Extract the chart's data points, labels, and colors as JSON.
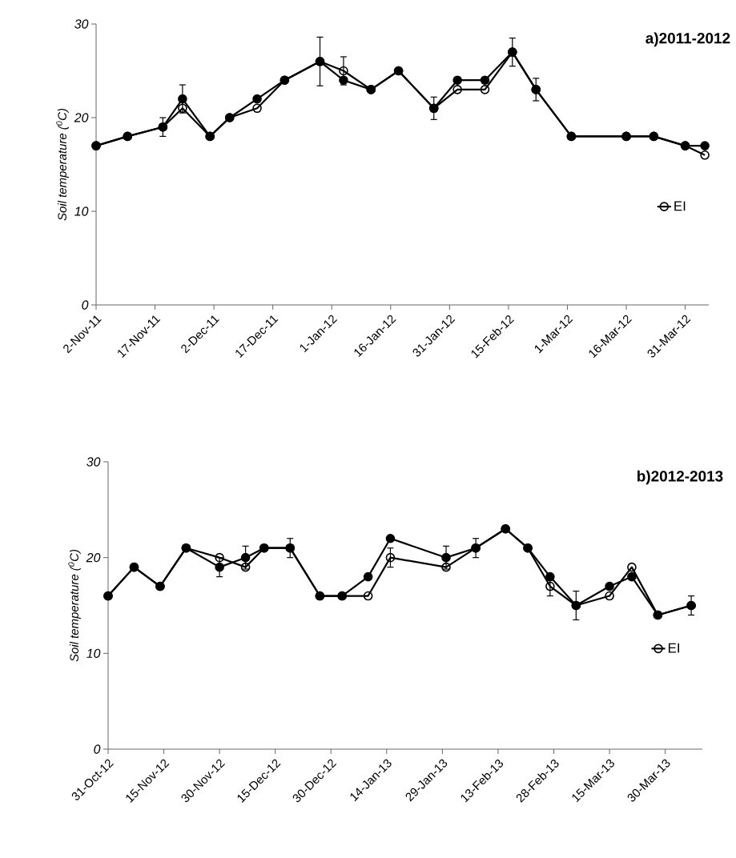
{
  "chart_data": [
    {
      "type": "line",
      "title": "a)2011-2012",
      "ylabel": "Soil temperature ($^{0}$C)",
      "x": [
        "2011-11-02",
        "2011-11-10",
        "2011-11-19",
        "2011-11-24",
        "2011-12-01",
        "2011-12-06",
        "2011-12-13",
        "2011-12-20",
        "2011-12-29",
        "2012-01-04",
        "2012-01-11",
        "2012-01-18",
        "2012-01-27",
        "2012-02-02",
        "2012-02-09",
        "2012-02-16",
        "2012-02-22",
        "2012-03-02",
        "2012-03-16",
        "2012-03-23",
        "2012-03-31",
        "2012-04-05"
      ],
      "xlim": [
        "2011-11-02",
        "2012-04-06"
      ],
      "xticks": [
        {
          "value": "2011-11-02",
          "label": "2-Nov-11"
        },
        {
          "value": "2011-11-17",
          "label": "17-Nov-11"
        },
        {
          "value": "2011-12-02",
          "label": "2-Dec-11"
        },
        {
          "value": "2011-12-17",
          "label": "17-Dec-11"
        },
        {
          "value": "2012-01-01",
          "label": "1-Jan-12"
        },
        {
          "value": "2012-01-16",
          "label": "16-Jan-12"
        },
        {
          "value": "2012-01-31",
          "label": "31-Jan-12"
        },
        {
          "value": "2012-02-15",
          "label": "15-Feb-12"
        },
        {
          "value": "2012-03-01",
          "label": "1-Mar-12"
        },
        {
          "value": "2012-03-16",
          "label": "16-Mar-12"
        },
        {
          "value": "2012-03-31",
          "label": "31-Mar-12"
        }
      ],
      "ylim": [
        0,
        30
      ],
      "yticks": [
        0,
        10,
        20,
        30
      ],
      "legend": "right",
      "marker": "circle",
      "series": [
        {
          "name": "EI",
          "color": "#000000",
          "values": [
            17,
            18,
            19,
            21,
            18,
            20,
            21,
            24,
            26,
            25,
            23,
            25,
            21,
            23,
            23,
            27,
            23,
            18,
            18,
            18,
            17,
            16
          ],
          "errors": [
            null,
            null,
            null,
            null,
            null,
            null,
            null,
            null,
            2.6,
            1.5,
            null,
            null,
            null,
            null,
            null,
            null,
            null,
            null,
            null,
            null,
            null,
            null
          ]
        },
        {
          "color": "#000000",
          "values": [
            17,
            18,
            19,
            22,
            18,
            20,
            22,
            24,
            26,
            24,
            23,
            25,
            21,
            24,
            24,
            27,
            23,
            18,
            18,
            18,
            17,
            17
          ],
          "errors": [
            null,
            null,
            1,
            1.5,
            null,
            null,
            null,
            null,
            null,
            null,
            null,
            null,
            1.2,
            null,
            null,
            1.5,
            1.2,
            null,
            null,
            null,
            null,
            null
          ]
        }
      ]
    },
    {
      "type": "line",
      "title": "b)2012-2013",
      "ylabel": "Soil temperature ($^{0}$C)",
      "x": [
        "2012-10-31",
        "2012-11-07",
        "2012-11-14",
        "2012-11-21",
        "2012-11-30",
        "2012-12-07",
        "2012-12-12",
        "2012-12-19",
        "2012-12-27",
        "2013-01-02",
        "2013-01-09",
        "2013-01-15",
        "2013-01-30",
        "2013-02-07",
        "2013-02-15",
        "2013-02-21",
        "2013-02-27",
        "2013-03-06",
        "2013-03-15",
        "2013-03-21",
        "2013-03-28",
        "2013-04-06"
      ],
      "xlim": [
        "2012-10-31",
        "2013-04-09"
      ],
      "xticks": [
        {
          "value": "2012-10-31",
          "label": "31-Oct-12"
        },
        {
          "value": "2012-11-15",
          "label": "15-Nov-12"
        },
        {
          "value": "2012-11-30",
          "label": "30-Nov-12"
        },
        {
          "value": "2012-12-15",
          "label": "15-Dec-12"
        },
        {
          "value": "2012-12-30",
          "label": "30-Dec-12"
        },
        {
          "value": "2013-01-14",
          "label": "14-Jan-13"
        },
        {
          "value": "2013-01-29",
          "label": "29-Jan-13"
        },
        {
          "value": "2013-02-13",
          "label": "13-Feb-13"
        },
        {
          "value": "2013-02-28",
          "label": "28-Feb-13"
        },
        {
          "value": "2013-03-15",
          "label": "15-Mar-13"
        },
        {
          "value": "2013-03-30",
          "label": "30-Mar-13"
        }
      ],
      "ylim": [
        0,
        30
      ],
      "yticks": [
        0,
        10,
        20,
        30
      ],
      "legend": "right",
      "marker": "circle",
      "series": [
        {
          "name": "EI",
          "color": "#000000",
          "values": [
            16,
            19,
            17,
            21,
            20,
            19,
            21,
            21,
            16,
            16,
            16,
            20,
            19,
            21,
            23,
            21,
            17,
            15,
            16,
            19,
            14,
            15
          ],
          "errors": [
            null,
            null,
            null,
            null,
            null,
            null,
            null,
            null,
            null,
            null,
            null,
            1,
            null,
            null,
            null,
            null,
            1,
            null,
            null,
            null,
            null,
            null
          ]
        },
        {
          "color": "#000000",
          "values": [
            16,
            19,
            17,
            21,
            19,
            20,
            21,
            21,
            16,
            16,
            18,
            22,
            20,
            21,
            23,
            21,
            18,
            15,
            17,
            18,
            14,
            15
          ],
          "errors": [
            null,
            null,
            null,
            null,
            1,
            1.2,
            null,
            1,
            null,
            null,
            null,
            null,
            1.2,
            1,
            null,
            null,
            null,
            1.5,
            null,
            null,
            null,
            1
          ]
        }
      ]
    }
  ]
}
